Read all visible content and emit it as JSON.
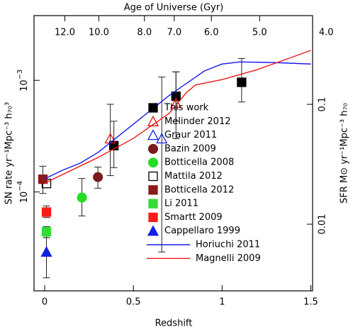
{
  "chart_data": {
    "type": "scatter",
    "title": "Age of Universe (Gyr)",
    "xlabel": "Redshift",
    "ylabel": "SN rate yr⁻¹Mpc⁻³ h₇₀³",
    "y2label": "SFR M⊙ yr⁻¹Mpc⁻³ h₇₀",
    "xlim": [
      -0.06,
      1.51
    ],
    "xticks": [
      0,
      0.5,
      1,
      1.5
    ],
    "ylim": [
      1.3e-05,
      0.0038
    ],
    "ylog": true,
    "yticks": [
      {
        "value": 0.0001,
        "label": "10",
        "exponent": "−4"
      },
      {
        "value": 0.001,
        "label": "10",
        "exponent": "−3"
      }
    ],
    "y2lim": [
      0.00278,
      0.55
    ],
    "y2log": true,
    "y2ticks": [
      0.01,
      0.1
    ],
    "top_ticks": [
      {
        "value": 12,
        "label": "12.0"
      },
      {
        "value": 10,
        "label": "10.0"
      },
      {
        "value": 8,
        "label": "8.0"
      },
      {
        "value": 7,
        "label": "7.0"
      },
      {
        "value": 6,
        "label": "6.0"
      },
      {
        "value": 5,
        "label": "5.0"
      },
      {
        "value": 4,
        "label": "4.0"
      }
    ],
    "series": [
      {
        "name": "This work",
        "color": "#000000",
        "marker": "square",
        "x": [
          0.39,
          0.74,
          1.11
        ],
        "values": [
          0.00026,
          0.00072,
          0.00096
        ],
        "lower": [
          0.000165,
          0.00043,
          0.00064
        ],
        "upper": [
          0.00043,
          0.00119,
          0.00157
        ]
      },
      {
        "name": "Melinder 2012",
        "color": "#e01010",
        "marker": "open-triangle",
        "x": [
          0.37,
          0.74
        ],
        "values": [
          0.0003,
          0.00062
        ],
        "lower": [
          0.00014,
          0.0003
        ],
        "upper": [
          0.00061,
          0.00119
        ]
      },
      {
        "name": "Graur 2011",
        "color": "#1020e0",
        "marker": "open-triangle",
        "x": [
          0.66
        ],
        "values": [
          0.0003
        ],
        "lower": [
          2.9e-05
        ],
        "upper": [
          0.00107
        ]
      },
      {
        "name": "Bazin 2009",
        "color": "#7a1a1a",
        "marker": "circle",
        "x": [
          0.3
        ],
        "values": [
          0.000136
        ],
        "lower": [
          0.000108
        ],
        "upper": [
          0.000167
        ]
      },
      {
        "name": "Botticella 2008",
        "color": "#22dd22",
        "marker": "circle",
        "x": [
          0.21
        ],
        "values": [
          8.9e-05
        ],
        "lower": [
          6.1e-05
        ],
        "upper": [
          0.000132
        ]
      },
      {
        "name": "Mattila 2012",
        "color": "#000000",
        "marker": "open-square",
        "x": [
          0.01
        ],
        "values": [
          0.000119
        ]
      },
      {
        "name": "Botticella 2012",
        "color": "#8b1a1a",
        "marker": "square",
        "x": [
          -0.01
        ],
        "values": [
          0.00013
        ],
        "lower": [
          9.7e-05
        ],
        "upper": [
          0.00017
        ]
      },
      {
        "name": "Li 2011",
        "color": "#33dd33",
        "marker": "square",
        "x": [
          0.01
        ],
        "values": [
          4.4e-05
        ],
        "lower": [
          3.9e-05
        ],
        "upper": [
          4.9e-05
        ]
      },
      {
        "name": "Smartt 2009",
        "color": "#ff1a1a",
        "marker": "square",
        "x": [
          0.01
        ],
        "values": [
          6.6e-05
        ],
        "lower": [
          5.9e-05
        ],
        "upper": [
          7.5e-05
        ]
      },
      {
        "name": "Cappellaro 1999",
        "color": "#1020e0",
        "marker": "triangle",
        "x": [
          0.01
        ],
        "values": [
          2.9e-05
        ],
        "lower": [
          1.7e-05
        ],
        "upper": [
          3.9e-05
        ]
      },
      {
        "name": "Horiuchi 2011",
        "color": "#1a1aee",
        "marker": "line",
        "axis": "y2",
        "x": [
          0,
          0.1,
          0.2,
          0.3,
          0.5,
          0.7,
          0.9,
          1.0,
          1.1,
          1.3,
          1.5
        ],
        "values": [
          0.0239,
          0.0282,
          0.0323,
          0.0396,
          0.0683,
          0.118,
          0.19,
          0.217,
          0.226,
          0.223,
          0.217
        ]
      },
      {
        "name": "Magnelli 2009",
        "color": "#ee1a1a",
        "marker": "line",
        "axis": "y2",
        "x": [
          0,
          0.3,
          0.5,
          0.7,
          0.8,
          0.85,
          1.0,
          1.2,
          1.4,
          1.5
        ],
        "values": [
          0.022,
          0.036,
          0.052,
          0.0838,
          0.126,
          0.145,
          0.161,
          0.195,
          0.249,
          0.282
        ]
      }
    ]
  }
}
